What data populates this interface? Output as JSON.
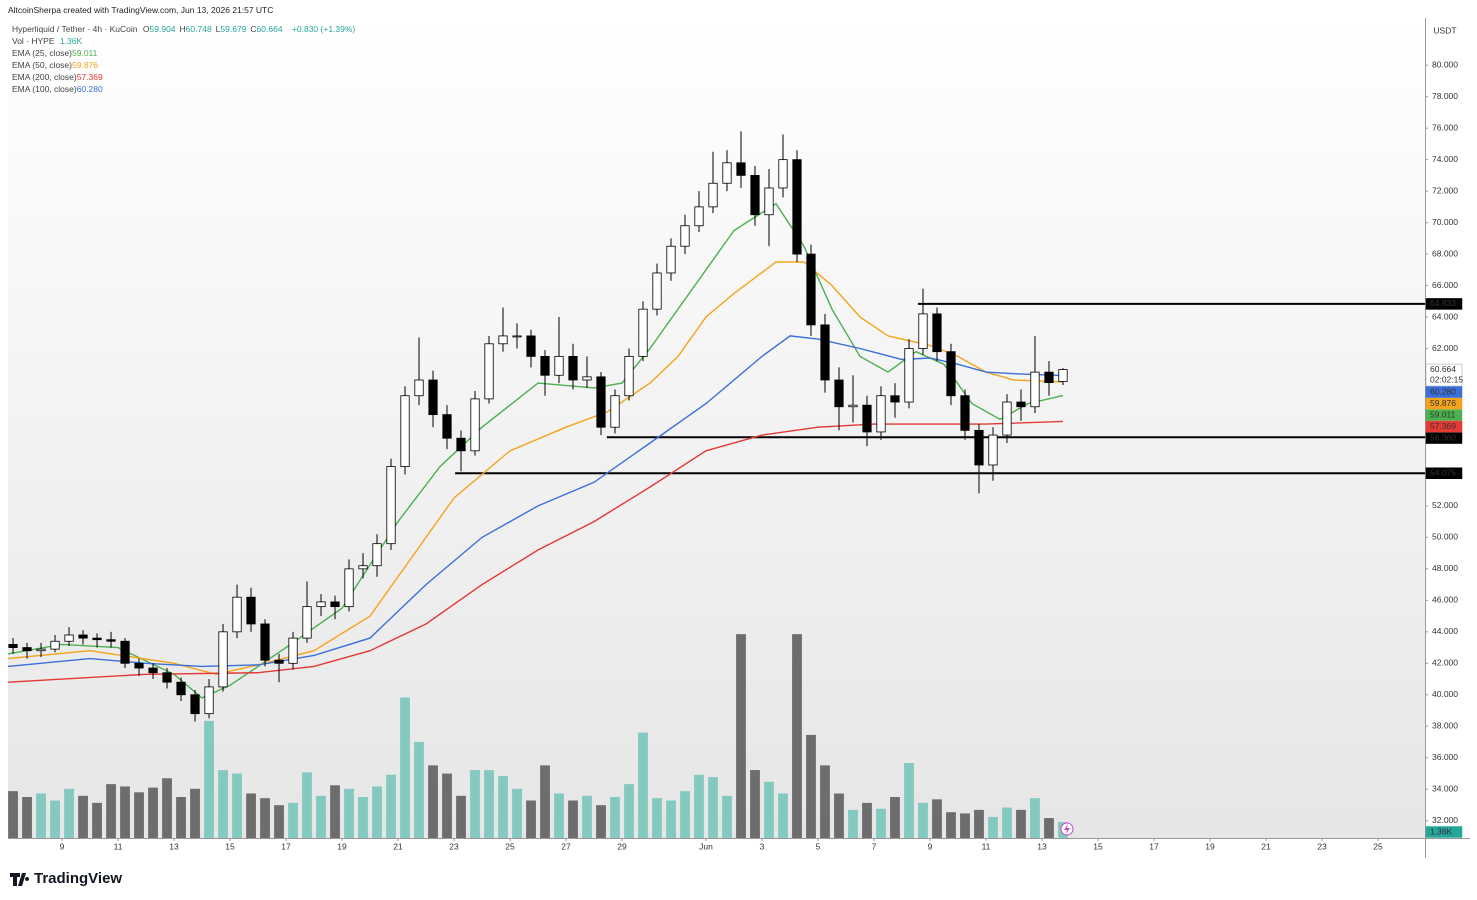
{
  "header": {
    "credit": "AltcoinSherpa created with TradingView.com, Jun 13, 2026 21:57 UTC"
  },
  "chart_data": {
    "type": "candlestick",
    "title": "Hyperliquid / Tether · 4h · KuCoin",
    "ohlc_legend": [
      {
        "label": "O",
        "value": "59.904"
      },
      {
        "label": "H",
        "value": "60.748"
      },
      {
        "label": "L",
        "value": "59.679"
      },
      {
        "label": "C",
        "value": "60.664"
      }
    ],
    "change": "+0.830 (+1.39%)",
    "currency": "USDT",
    "countdown": "02:02:15",
    "up_color": "#ffffff",
    "down_color": "#000000",
    "x": [
      7.25,
      7.75,
      8.25,
      8.75,
      9.25,
      9.75,
      10.25,
      10.75,
      11.25,
      11.75,
      12.25,
      12.75,
      13.25,
      13.75,
      14.25,
      14.75,
      15.25,
      15.75,
      16.25,
      16.75,
      17.25,
      17.75,
      18.25,
      18.75,
      19.25,
      19.75,
      20.25,
      20.75,
      21.25,
      21.75,
      22.25,
      22.75,
      23.25,
      23.75,
      24.25,
      24.75,
      25.25,
      25.75,
      26.25,
      26.75,
      27.25,
      27.75,
      28.25,
      28.75,
      29.25,
      29.75,
      30.25,
      30.75,
      31.25,
      31.75,
      32.25,
      32.75,
      33.25,
      33.75,
      34.25,
      34.75,
      35.25,
      35.75,
      36.25,
      36.75,
      37.25,
      37.75,
      38.25,
      38.75,
      39.25,
      39.75,
      40.25,
      40.75,
      41.25,
      41.75,
      42.25,
      42.75,
      43.25,
      43.75,
      44.25,
      44.75
    ],
    "open": [
      43.2,
      43,
      42.8,
      42.9,
      43.4,
      43.8,
      43.6,
      43.5,
      43.4,
      42,
      41.7,
      41.4,
      40.8,
      40,
      38.8,
      40.5,
      44,
      46.2,
      44.5,
      42.2,
      42,
      43.6,
      45.6,
      45.9,
      45.6,
      48,
      48.2,
      49.6,
      54.5,
      59,
      60,
      57.8,
      56.3,
      55.5,
      58.8,
      62.3,
      62.8,
      62.8,
      61.5,
      60.3,
      61.5,
      60,
      60.2,
      57,
      59,
      61.5,
      64.5,
      66.8,
      68.5,
      69.8,
      71,
      72.5,
      73.8,
      73,
      70.5,
      72.2,
      74,
      68,
      63.5,
      60,
      58.3,
      58.4,
      56.7,
      59,
      58.6,
      62,
      64.2,
      61.8,
      59,
      56.8,
      54.6,
      56.5,
      58.6,
      58.3,
      60.5,
      59.904
    ],
    "high": [
      43.6,
      43.3,
      43.3,
      43.8,
      44.3,
      44.1,
      43.9,
      44,
      43.6,
      42.3,
      42,
      41.7,
      41.1,
      40.3,
      41,
      44.5,
      47,
      46.8,
      44.8,
      42.6,
      44,
      47.2,
      46.4,
      46.3,
      48.6,
      49,
      50.2,
      55,
      59.6,
      62.7,
      60.6,
      58.4,
      56.8,
      59.3,
      62.8,
      64.6,
      63.6,
      63.2,
      61.9,
      64,
      62.3,
      61.5,
      60.5,
      59.4,
      62,
      65,
      67.4,
      69,
      70.5,
      72,
      74.5,
      74.6,
      75.8,
      73.6,
      73.4,
      75.6,
      74.6,
      68.6,
      64.2,
      60.8,
      60.3,
      59,
      59.6,
      59.8,
      62.6,
      65.8,
      64.6,
      62.3,
      59.4,
      57.2,
      57,
      59.1,
      59.4,
      62.8,
      61.2,
      60.748
    ],
    "low": [
      42.6,
      42.3,
      42.4,
      42.7,
      43.1,
      43.2,
      43,
      43,
      41.7,
      41.2,
      41,
      40.4,
      39.6,
      38.3,
      38.5,
      40.2,
      43.6,
      44,
      41.8,
      40.8,
      41.6,
      43.3,
      45,
      44.8,
      45.3,
      47.4,
      47.5,
      49.2,
      54,
      58.4,
      57,
      55.6,
      54.2,
      55.2,
      58.5,
      61.8,
      62,
      60.8,
      59,
      59.8,
      59.4,
      59.5,
      56.5,
      56.6,
      58.7,
      61.2,
      64.1,
      66.3,
      68,
      69.4,
      70.6,
      72,
      72.2,
      69.8,
      68.5,
      71.6,
      67.5,
      62.8,
      59.2,
      56.8,
      57.3,
      55.8,
      56.2,
      57.6,
      58.2,
      61.6,
      61.2,
      58.4,
      56.2,
      52.8,
      53.6,
      56,
      57.4,
      57.9,
      59,
      59.679
    ],
    "close": [
      43,
      42.8,
      42.9,
      43.4,
      43.8,
      43.6,
      43.5,
      43.4,
      42,
      41.7,
      41.4,
      40.8,
      40,
      38.8,
      40.5,
      44,
      46.2,
      44.5,
      42.2,
      42,
      43.6,
      45.6,
      45.9,
      45.6,
      48,
      48.2,
      49.6,
      54.5,
      59,
      60,
      57.8,
      56.3,
      55.5,
      58.8,
      62.3,
      62.8,
      62.8,
      61.5,
      60.3,
      61.5,
      60,
      60.2,
      57,
      59,
      61.5,
      64.5,
      66.8,
      68.5,
      69.8,
      71,
      72.5,
      73.8,
      73,
      70.5,
      72.2,
      74,
      68,
      63.5,
      60,
      58.3,
      58.4,
      56.7,
      59,
      58.6,
      62,
      64.2,
      61.8,
      59,
      56.8,
      54.6,
      56.5,
      58.6,
      58.3,
      60.5,
      59.834,
      60.664
    ],
    "volume": {
      "name": "Vol · HYPE",
      "last_label": "1.36K",
      "up_color": "#84c9c0",
      "down_color": "#6d6d6d",
      "ylim": [
        0,
        17500
      ],
      "values": [
        4000,
        3500,
        3800,
        3200,
        4200,
        3600,
        3000,
        4600,
        4400,
        3900,
        4300,
        5100,
        3500,
        4200,
        10000,
        5800,
        5500,
        3800,
        3400,
        2800,
        3000,
        5600,
        3600,
        4500,
        4200,
        3500,
        4400,
        5400,
        12000,
        8200,
        6200,
        5500,
        3600,
        5800,
        5800,
        5300,
        4200,
        3200,
        6200,
        3800,
        3200,
        3600,
        2800,
        3500,
        4600,
        9000,
        3400,
        3200,
        4000,
        5400,
        5200,
        3600,
        17400,
        5800,
        4800,
        3800,
        17400,
        8800,
        6200,
        3800,
        2400,
        3000,
        2500,
        3500,
        6400,
        3000,
        3300,
        2200,
        2100,
        2400,
        1800,
        2600,
        2400,
        3400,
        1700,
        1360
      ]
    },
    "lines": [
      {
        "name": "EMA (25, close)",
        "color": "#4caf50",
        "last_label": "59.011",
        "x": [
          7.07,
          9,
          11,
          13,
          14,
          15,
          17,
          19,
          21,
          22.5,
          24,
          26,
          28,
          29,
          30,
          32,
          33,
          34.5,
          35.5,
          36.5,
          37.5,
          38.5,
          39.5,
          40.5,
          41.5,
          42.5,
          43.5,
          44.75
        ],
        "values": [
          42.6,
          43.2,
          43,
          41.3,
          39.8,
          40.6,
          43,
          45.5,
          51,
          54.5,
          57,
          59.8,
          59.5,
          59.8,
          62,
          67,
          69.5,
          71.2,
          68.5,
          64.5,
          61.5,
          60.5,
          61.8,
          61,
          58.5,
          57.5,
          58.5,
          59.011
        ]
      },
      {
        "name": "EMA (50, close)",
        "color": "#f5a31a",
        "last_label": "59.876",
        "x": [
          7.07,
          10,
          13,
          14.5,
          16,
          18,
          20,
          22,
          23,
          25,
          27,
          28.5,
          30,
          31,
          32,
          33,
          34.5,
          35.5,
          36.5,
          37.5,
          38.5,
          40,
          41,
          42,
          43,
          44.75
        ],
        "values": [
          42.3,
          42.8,
          42,
          41.3,
          41.9,
          42.8,
          45,
          50,
          52.5,
          55.5,
          57,
          58,
          59.8,
          61.5,
          64,
          65.5,
          67.5,
          67.5,
          66,
          64,
          62.8,
          62.2,
          61.5,
          60.5,
          60,
          59.876
        ]
      },
      {
        "name": "EMA (200, close)",
        "color": "#e53935",
        "last_label": "57.369",
        "x": [
          7.07,
          12,
          16,
          18,
          20,
          22,
          24,
          26,
          28,
          30,
          32,
          34,
          36,
          38,
          40,
          42,
          44.75
        ],
        "values": [
          40.8,
          41.3,
          41.4,
          41.8,
          42.8,
          44.5,
          47,
          49.2,
          51,
          53.2,
          55.5,
          56.5,
          57,
          57.2,
          57.2,
          57.2,
          57.369
        ]
      },
      {
        "name": "EMA (100, close)",
        "color": "#3b6fd9",
        "last_label": "60.280",
        "x": [
          7.07,
          10,
          12,
          14,
          16,
          18,
          20,
          22,
          24,
          26,
          28,
          30,
          32,
          34,
          35,
          36,
          37.5,
          39,
          40,
          41,
          42,
          43,
          44.75
        ],
        "values": [
          41.8,
          42.3,
          42,
          41.8,
          41.9,
          42.5,
          43.6,
          47,
          50,
          52,
          53.5,
          56,
          58.5,
          61.5,
          62.8,
          62.6,
          62,
          61.3,
          61.4,
          61,
          60.5,
          60.4,
          60.28
        ]
      }
    ],
    "levels": [
      {
        "value": 64.833,
        "start": 39.57,
        "label": "64.833"
      },
      {
        "value": 56.36,
        "start": 28.46,
        "label": "56.360"
      },
      {
        "value": 54.075,
        "start": 23.04,
        "label": "54.075"
      }
    ],
    "xlim": [
      7.07,
      57.68
    ],
    "xticks": [
      9,
      11,
      13,
      15,
      17,
      19,
      21,
      23,
      25,
      27,
      29,
      {
        "value": 32,
        "label": "Jun"
      },
      {
        "value": 34,
        "label": "3"
      },
      {
        "value": 36,
        "label": "5"
      },
      {
        "value": 38,
        "label": "7"
      },
      {
        "value": 40,
        "label": "9"
      },
      {
        "value": 42,
        "label": "11"
      },
      {
        "value": 44,
        "label": "13"
      },
      {
        "value": 46,
        "label": "15"
      },
      {
        "value": 48,
        "label": "17"
      },
      {
        "value": 50,
        "label": "19"
      },
      {
        "value": 52,
        "label": "21"
      },
      {
        "value": 54,
        "label": "23"
      },
      {
        "value": 56,
        "label": "25"
      }
    ],
    "ylim": [
      30.9,
      83
    ],
    "yticks": [
      {
        "value": 80,
        "label": "80.000"
      },
      {
        "value": 78,
        "label": "78.000"
      },
      {
        "value": 76,
        "label": "76.000"
      },
      {
        "value": 74,
        "label": "74.000"
      },
      {
        "value": 72,
        "label": "72.000"
      },
      {
        "value": 70,
        "label": "70.000"
      },
      {
        "value": 68,
        "label": "68.000"
      },
      {
        "value": 66,
        "label": "66.000"
      },
      {
        "value": 64,
        "label": "64.000"
      },
      {
        "value": 62,
        "label": "62.000"
      },
      {
        "value": 52,
        "label": "52.000"
      },
      {
        "value": 50,
        "label": "50.000"
      },
      {
        "value": 48,
        "label": "48.000"
      },
      {
        "value": 46,
        "label": "46.000"
      },
      {
        "value": 44,
        "label": "44.000"
      },
      {
        "value": 42,
        "label": "42.000"
      },
      {
        "value": 40,
        "label": "40.000"
      },
      {
        "value": 38,
        "label": "38.000"
      },
      {
        "value": 36,
        "label": "36.000"
      },
      {
        "value": 34,
        "label": "34.000"
      },
      {
        "value": 32,
        "label": "32.000"
      }
    ],
    "grid": false
  },
  "footer": {
    "brand": "TradingView"
  }
}
